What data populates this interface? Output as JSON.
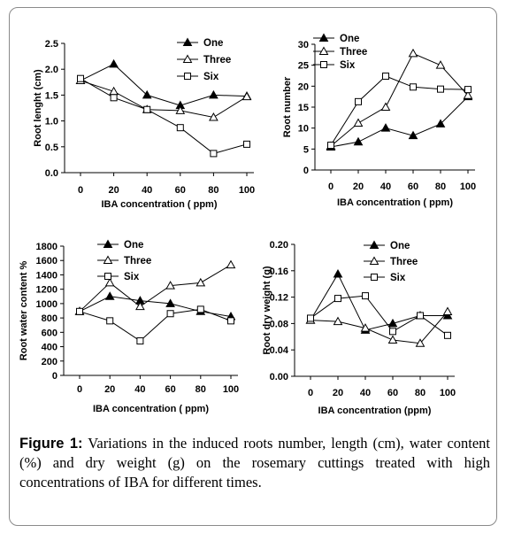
{
  "caption": {
    "label": "Figure 1:",
    "text": "Variations in the induced roots number, length (cm), water content (%) and dry weight (g) on the rosemary cuttings treated with high concentrations of IBA for different times."
  },
  "chart_data": [
    {
      "type": "line",
      "xlabel": "IBA concentration ( ppm)",
      "ylabel": "Root lenght (cm)",
      "x": [
        0,
        20,
        40,
        60,
        80,
        100
      ],
      "xlim": [
        0,
        100
      ],
      "ylim": [
        0,
        2.5
      ],
      "yticks": [
        "0.0",
        "0.5",
        "1.0",
        "1.5",
        "2.0",
        "2.5"
      ],
      "grid": false,
      "legend_position": "top-right",
      "series": [
        {
          "name": "One",
          "marker": "filled-triangle",
          "values": [
            1.78,
            2.1,
            1.5,
            1.3,
            1.5,
            1.48
          ]
        },
        {
          "name": "Three",
          "marker": "open-triangle",
          "values": [
            1.78,
            1.57,
            1.22,
            1.2,
            1.07,
            1.47
          ]
        },
        {
          "name": "Six",
          "marker": "open-square",
          "values": [
            1.82,
            1.45,
            1.22,
            0.87,
            0.37,
            0.55
          ]
        }
      ]
    },
    {
      "type": "line",
      "xlabel": "IBA concentration ( ppm)",
      "ylabel": "Root number",
      "x": [
        0,
        20,
        40,
        60,
        80,
        100
      ],
      "xlim": [
        0,
        100
      ],
      "ylim": [
        0,
        30
      ],
      "yticks": [
        "0",
        "5",
        "10",
        "15",
        "20",
        "25",
        "30"
      ],
      "grid": false,
      "legend_position": "top-left",
      "series": [
        {
          "name": "One",
          "marker": "filled-triangle",
          "values": [
            5.5,
            6.7,
            10,
            8.2,
            11,
            17.5
          ]
        },
        {
          "name": "Three",
          "marker": "open-triangle",
          "values": [
            5.7,
            11.2,
            15,
            27.8,
            25,
            17.8
          ]
        },
        {
          "name": "Six",
          "marker": "open-square",
          "values": [
            5.9,
            16.3,
            22.4,
            19.8,
            19.3,
            19.2
          ]
        }
      ]
    },
    {
      "type": "line",
      "xlabel": "IBA concentration ( ppm)",
      "ylabel": "Root water content %",
      "x": [
        0,
        20,
        40,
        60,
        80,
        100
      ],
      "xlim": [
        0,
        100
      ],
      "ylim": [
        0,
        1800
      ],
      "yticks": [
        "0",
        "200",
        "400",
        "600",
        "800",
        "1000",
        "1200",
        "1400",
        "1600",
        "1800"
      ],
      "grid": false,
      "legend_position": "top-center",
      "series": [
        {
          "name": "One",
          "marker": "filled-triangle",
          "values": [
            890,
            1100,
            1040,
            1000,
            890,
            820
          ]
        },
        {
          "name": "Three",
          "marker": "open-triangle",
          "values": [
            890,
            1290,
            960,
            1250,
            1290,
            1540
          ]
        },
        {
          "name": "Six",
          "marker": "open-square",
          "values": [
            890,
            760,
            480,
            860,
            920,
            760
          ]
        }
      ]
    },
    {
      "type": "line",
      "xlabel": "IBA concentration (ppm)",
      "ylabel": "Root dry weight  (g)",
      "x": [
        0,
        20,
        40,
        60,
        80,
        100
      ],
      "xlim": [
        0,
        100
      ],
      "ylim": [
        0,
        0.2
      ],
      "yticks": [
        "0.00",
        "0.04",
        "0.08",
        "0.12",
        "0.16",
        "0.20"
      ],
      "grid": false,
      "legend_position": "top-right",
      "series": [
        {
          "name": "One",
          "marker": "filled-triangle",
          "values": [
            0.085,
            0.155,
            0.07,
            0.08,
            0.092,
            0.092
          ]
        },
        {
          "name": "Three",
          "marker": "open-triangle",
          "values": [
            0.085,
            0.083,
            0.073,
            0.055,
            0.05,
            0.098
          ]
        },
        {
          "name": "Six",
          "marker": "open-square",
          "values": [
            0.088,
            0.118,
            0.122,
            0.068,
            0.092,
            0.062
          ]
        }
      ]
    }
  ]
}
